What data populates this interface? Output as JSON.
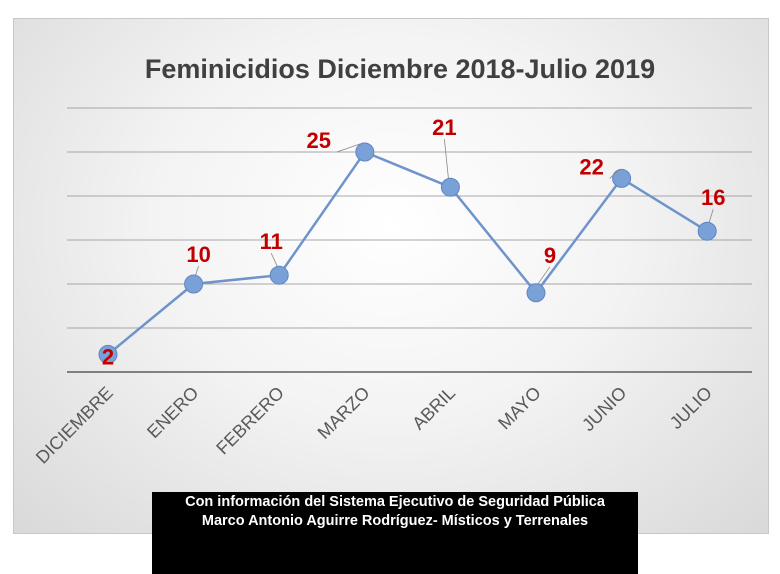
{
  "chart_data": {
    "type": "line",
    "title": "Feminicidios  Diciembre 2018-Julio 2019",
    "categories": [
      "DICIEMBRE",
      "ENERO",
      "FEBRERO",
      "MARZO",
      "ABRIL",
      "MAYO",
      "JUNIO",
      "JULIO"
    ],
    "values": [
      2,
      10,
      11,
      25,
      21,
      9,
      22,
      16
    ],
    "data_labels": [
      "2",
      "10",
      "11",
      "25",
      "21",
      "9",
      "22",
      "16"
    ],
    "ylim": [
      0,
      30
    ],
    "ytick_step": 5,
    "grid": true,
    "xlabel": "",
    "ylabel": "",
    "colors": {
      "line": "#6f94cc",
      "marker": "#7aa0d8",
      "label": "#c00000",
      "title": "#404040",
      "axis_text": "#595959"
    }
  },
  "source": {
    "line1": "Con información del Sistema Ejecutivo de Seguridad Pública",
    "line2": "Marco Antonio Aguirre Rodríguez- Místicos y Terrenales"
  }
}
